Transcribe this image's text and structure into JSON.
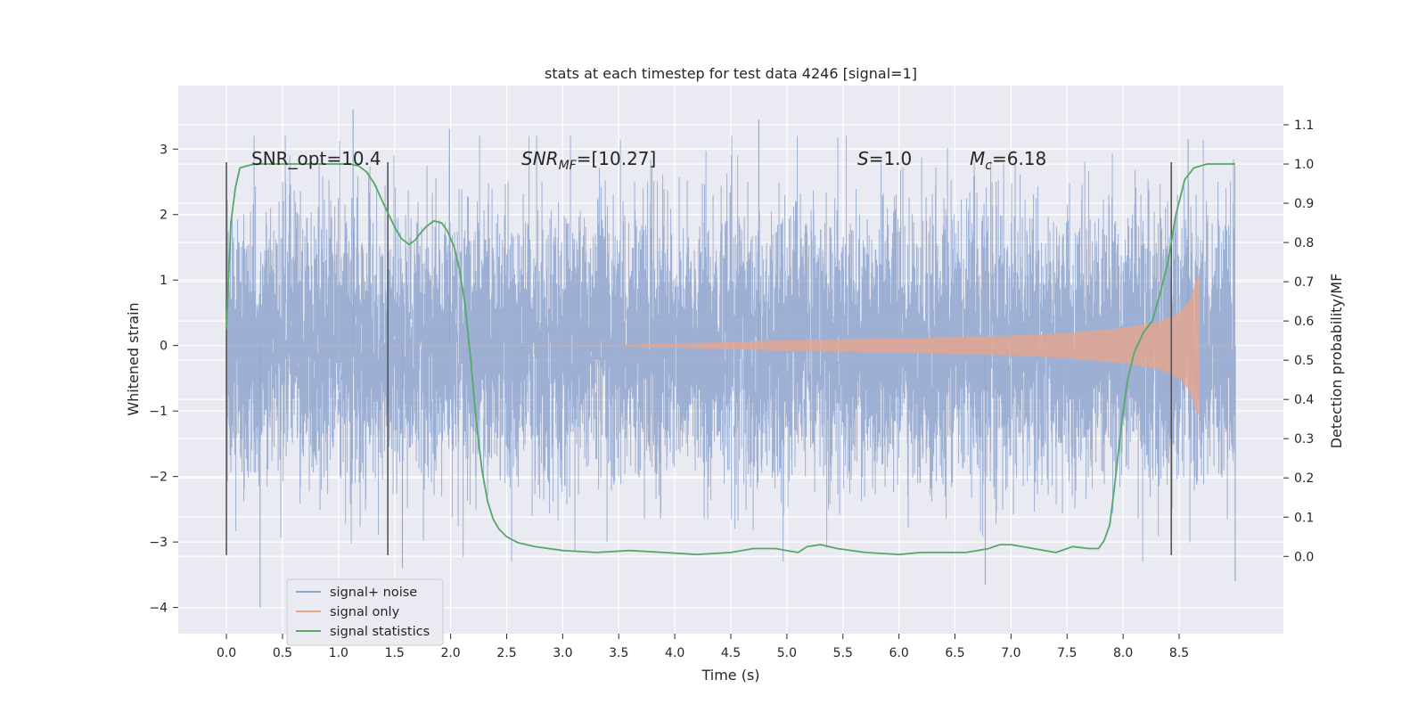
{
  "chart_data": {
    "type": "line",
    "title": "stats at each timestep for test data 4246 [signal=1]",
    "xlabel": "Time (s)",
    "ylabel_left": "Whitened strain",
    "ylabel_right": "Detection probability/MF",
    "xlim": [
      -0.43,
      9.43
    ],
    "ylim_left": [
      -4.4,
      3.97
    ],
    "ylim_right": [
      -0.197,
      1.2
    ],
    "x_ticks": [
      "0.0",
      "0.5",
      "1.0",
      "1.5",
      "2.0",
      "2.5",
      "3.0",
      "3.5",
      "4.0",
      "4.5",
      "5.0",
      "5.5",
      "6.0",
      "6.5",
      "7.0",
      "7.5",
      "8.0",
      "8.5"
    ],
    "y_ticks_left": [
      "−4",
      "−3",
      "−2",
      "−1",
      "0",
      "1",
      "2",
      "3"
    ],
    "y_ticks_right": [
      "0.0",
      "0.1",
      "0.2",
      "0.3",
      "0.4",
      "0.5",
      "0.6",
      "0.7",
      "0.8",
      "0.9",
      "1.0",
      "1.1"
    ],
    "grid": true,
    "legend_position": "lower-left",
    "colors": {
      "background": "#eaeaf2",
      "grid": "#ffffff",
      "noise": "#8fa6cf",
      "signal": "#e6a58c",
      "statistics": "#55a868",
      "markers": "#555555"
    },
    "annotations": {
      "snr_opt": "SNR_opt=10.4",
      "snr_mf_main": "SNR",
      "snr_mf_sub": "MF",
      "snr_mf_value": "=[10.27]",
      "s_main": "S",
      "s_value": "=1.0",
      "mc_main": "M",
      "mc_sub": "c",
      "mc_value": "=6.18"
    },
    "vertical_markers": [
      0.0,
      1.44,
      8.43
    ],
    "vertical_marker_range": [
      -3.2,
      2.8
    ],
    "noise_series": {
      "name": "signal+ noise",
      "x_range": [
        0.0,
        9.0
      ],
      "typical_amplitude": 1.0,
      "extremes": [
        {
          "x": 0.3,
          "y": -4.0
        },
        {
          "x": 1.13,
          "y": 3.6
        },
        {
          "x": 1.57,
          "y": -3.4
        },
        {
          "x": 4.75,
          "y": 3.45
        },
        {
          "x": 6.77,
          "y": -3.65
        },
        {
          "x": 9.0,
          "y": -3.6
        },
        {
          "x": 8.58,
          "y": 3.15
        },
        {
          "x": 1.99,
          "y": 3.3
        }
      ]
    },
    "signal_series": {
      "name": "signal only",
      "x_range": [
        0.0,
        8.68
      ],
      "envelope": [
        {
          "x": 0.0,
          "a": 0.005
        },
        {
          "x": 3.5,
          "a": 0.01
        },
        {
          "x": 4.0,
          "a": 0.03
        },
        {
          "x": 5.0,
          "a": 0.08
        },
        {
          "x": 6.0,
          "a": 0.11
        },
        {
          "x": 7.0,
          "a": 0.15
        },
        {
          "x": 7.5,
          "a": 0.19
        },
        {
          "x": 8.0,
          "a": 0.27
        },
        {
          "x": 8.3,
          "a": 0.35
        },
        {
          "x": 8.5,
          "a": 0.5
        },
        {
          "x": 8.6,
          "a": 0.7
        },
        {
          "x": 8.66,
          "a": 1.05
        }
      ]
    },
    "statistics_series": {
      "name": "signal statistics",
      "x": [
        0.0,
        0.04,
        0.08,
        0.12,
        0.18,
        0.25,
        0.4,
        0.6,
        0.8,
        1.0,
        1.1,
        1.18,
        1.25,
        1.32,
        1.4,
        1.45,
        1.5,
        1.56,
        1.63,
        1.68,
        1.72,
        1.78,
        1.85,
        1.92,
        1.97,
        2.03,
        2.08,
        2.13,
        2.18,
        2.23,
        2.28,
        2.33,
        2.38,
        2.43,
        2.5,
        2.6,
        2.75,
        3.0,
        3.3,
        3.6,
        3.9,
        4.2,
        4.5,
        4.7,
        4.9,
        5.0,
        5.1,
        5.18,
        5.3,
        5.45,
        5.7,
        6.0,
        6.2,
        6.4,
        6.6,
        6.7,
        6.8,
        6.9,
        7.0,
        7.2,
        7.4,
        7.55,
        7.7,
        7.78,
        7.83,
        7.88,
        7.92,
        7.96,
        8.0,
        8.04,
        8.1,
        8.18,
        8.26,
        8.33,
        8.4,
        8.47,
        8.55,
        8.63,
        8.75,
        8.9,
        9.0
      ],
      "y": [
        0.58,
        0.85,
        0.94,
        0.99,
        0.995,
        1.0,
        1.0,
        1.0,
        1.0,
        1.0,
        1.0,
        0.995,
        0.98,
        0.95,
        0.9,
        0.87,
        0.84,
        0.81,
        0.795,
        0.805,
        0.82,
        0.84,
        0.855,
        0.85,
        0.83,
        0.79,
        0.73,
        0.64,
        0.5,
        0.34,
        0.22,
        0.14,
        0.095,
        0.07,
        0.05,
        0.035,
        0.025,
        0.015,
        0.01,
        0.015,
        0.01,
        0.005,
        0.01,
        0.02,
        0.02,
        0.015,
        0.01,
        0.025,
        0.03,
        0.02,
        0.01,
        0.005,
        0.01,
        0.01,
        0.01,
        0.015,
        0.02,
        0.03,
        0.03,
        0.02,
        0.01,
        0.025,
        0.02,
        0.02,
        0.04,
        0.08,
        0.17,
        0.27,
        0.37,
        0.45,
        0.52,
        0.57,
        0.6,
        0.67,
        0.75,
        0.87,
        0.96,
        0.99,
        1.0,
        1.0,
        1.0
      ]
    }
  }
}
